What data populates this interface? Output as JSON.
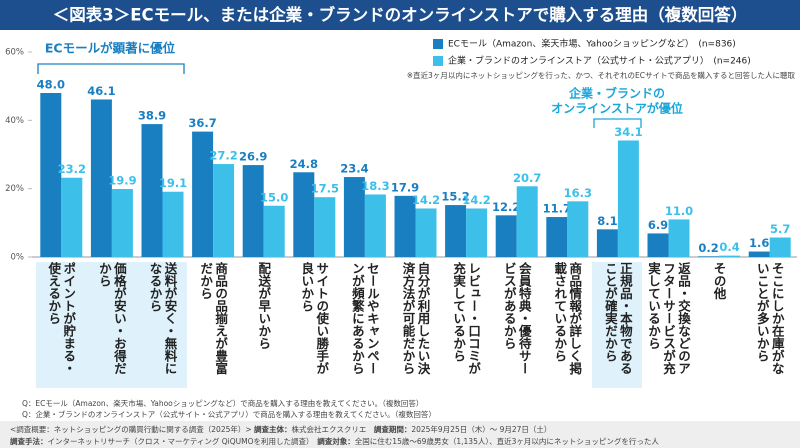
{
  "chart_data": {
    "type": "bar",
    "title": "＜図表3＞ECモール、または企業・ブランドのオンラインストアで購入する理由（複数回答）",
    "categories": [
      "ポイントが貯まる・使えるから",
      "価格が安い・お得だから",
      "送料が安く・無料になるから",
      "商品の品揃えが豊富だから",
      "配送が早いから",
      "サイトの使い勝手が良いから",
      "セールやキャンペーンが頻繁にあるから",
      "自分が利用したい決済方法が可能だから",
      "レビュー・口コミが充実しているから",
      "会員特典・優待サービスがあるから",
      "商品情報が詳しく掲載されているから",
      "正規品・本物であることが確実だから",
      "返品・交換などのアフターサービスが充実しているから",
      "その他",
      "そこにしか在庫がないことが多いから"
    ],
    "series": [
      {
        "name": "ECモール（Amazon、楽天市場、Yahooショッピングなど）　(n=836)",
        "color": "#1a7fc1",
        "values": [
          48.0,
          46.1,
          38.9,
          36.7,
          26.9,
          24.8,
          23.4,
          17.9,
          15.2,
          12.2,
          11.7,
          8.1,
          6.9,
          0.2,
          1.6
        ],
        "value_labels": [
          "48.0",
          "46.1",
          "38.9",
          "36.7",
          "26.9",
          "24.8",
          "23.4",
          "17.9",
          "15.2",
          "12.2",
          "11.7",
          "8.1",
          "6.9",
          "0.2",
          "1.6"
        ]
      },
      {
        "name": "企業・ブランドのオンラインストア（公式サイト・公式アプリ）　(n=246)",
        "color": "#3cc0ea",
        "values": [
          23.2,
          19.9,
          19.1,
          27.2,
          15.0,
          17.5,
          18.3,
          14.2,
          14.2,
          20.7,
          16.3,
          34.1,
          11.0,
          0.4,
          5.7
        ],
        "value_labels": [
          "23.2",
          "19.9",
          "19.1",
          "27.2",
          "15.0",
          "17.5",
          "18.3",
          "14.2",
          "14.2",
          "20.7",
          "16.3",
          "34.1",
          "11.0",
          "0.4",
          "5.7"
        ]
      }
    ],
    "ylim": [
      0,
      60
    ],
    "yticks": [
      {
        "value": 0,
        "label": "0%"
      },
      {
        "value": 20,
        "label": "20%"
      },
      {
        "value": 40,
        "label": "40%"
      },
      {
        "value": 60,
        "label": "60%"
      }
    ],
    "grid": false,
    "note": "※直近3ヶ月以内にネットショッピングを行った、かつ、それぞれのECサイトで商品を購入すると回答した人に聴取",
    "annotations": [
      "ECモールが顕著に優位",
      "企業・ブランドの",
      "オンラインストアが優位"
    ],
    "footnotes": [
      "Q：ECモール（Amazon、楽天市場、Yahooショッピングなど）で商品を購入する理由を教えてください。（複数回答）",
      "Q：企業・ブランドのオンラインストア（公式サイト・公式アプリ）で商品を購入する理由を教えてください。（複数回答）"
    ]
  },
  "survey": {
    "overview": "<調査概要：ネットショッピングの購買行動に関する調査（2025年）>",
    "subject_label": "調査主体：",
    "subject": "株式会社エクスクリエ",
    "period_label": "調査期間：",
    "period": "2025年9月25日（木）～ 9月27日（土）",
    "method_label": "調査手法：",
    "method": "インターネットリサーチ（クロス・マーケティング QiQUMOを利用した調査）",
    "target_label": "調査対象：",
    "target": "全国に住む15歳～69歳男女（1,135人）、直近3ヶ月以内にネットショッピングを行った人"
  }
}
